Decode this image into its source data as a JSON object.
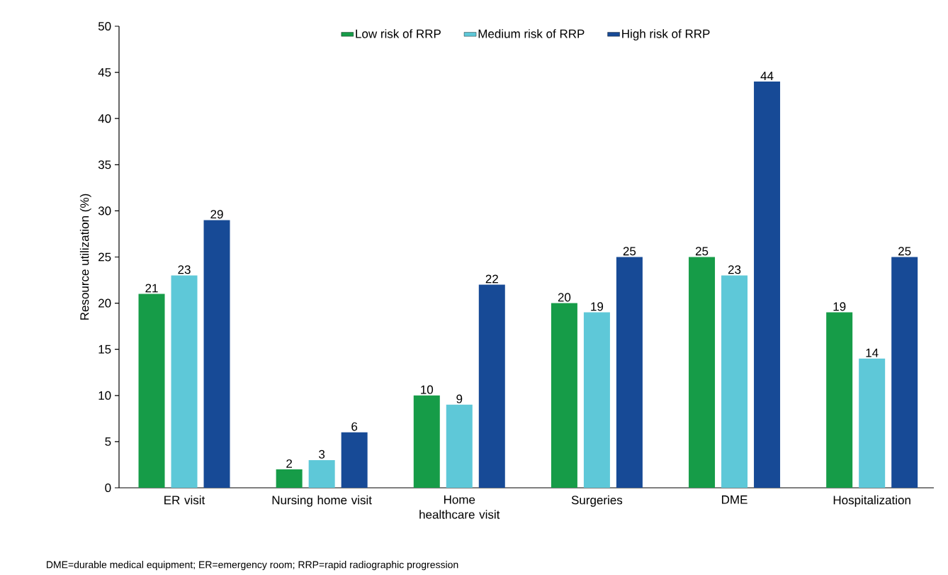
{
  "chart_data": {
    "type": "bar",
    "ylabel": "Resource utilization (%)",
    "categories": [
      "ER visit",
      "Nursing home visit",
      "Home healthcare visit",
      "Surgeries",
      "DME",
      "Hospitalization"
    ],
    "series": [
      {
        "name": "Low risk of RRP",
        "color": "#169c48",
        "values": [
          21,
          2,
          10,
          20,
          25,
          19
        ]
      },
      {
        "name": "Medium risk of RRP",
        "color": "#5ec8d8",
        "values": [
          23,
          3,
          9,
          19,
          23,
          14
        ]
      },
      {
        "name": "High risk of RRP",
        "color": "#174a96",
        "values": [
          29,
          6,
          22,
          25,
          44,
          25
        ]
      }
    ],
    "ylim": [
      0,
      50
    ],
    "yticks": [
      0,
      5,
      10,
      15,
      20,
      25,
      30,
      35,
      40,
      45,
      50
    ],
    "data_labels": true,
    "legend": "top",
    "grid": false,
    "annotations": [
      "DME=durable medical equipment; ER=emergency room; RRP=rapid radiographic progression"
    ]
  }
}
